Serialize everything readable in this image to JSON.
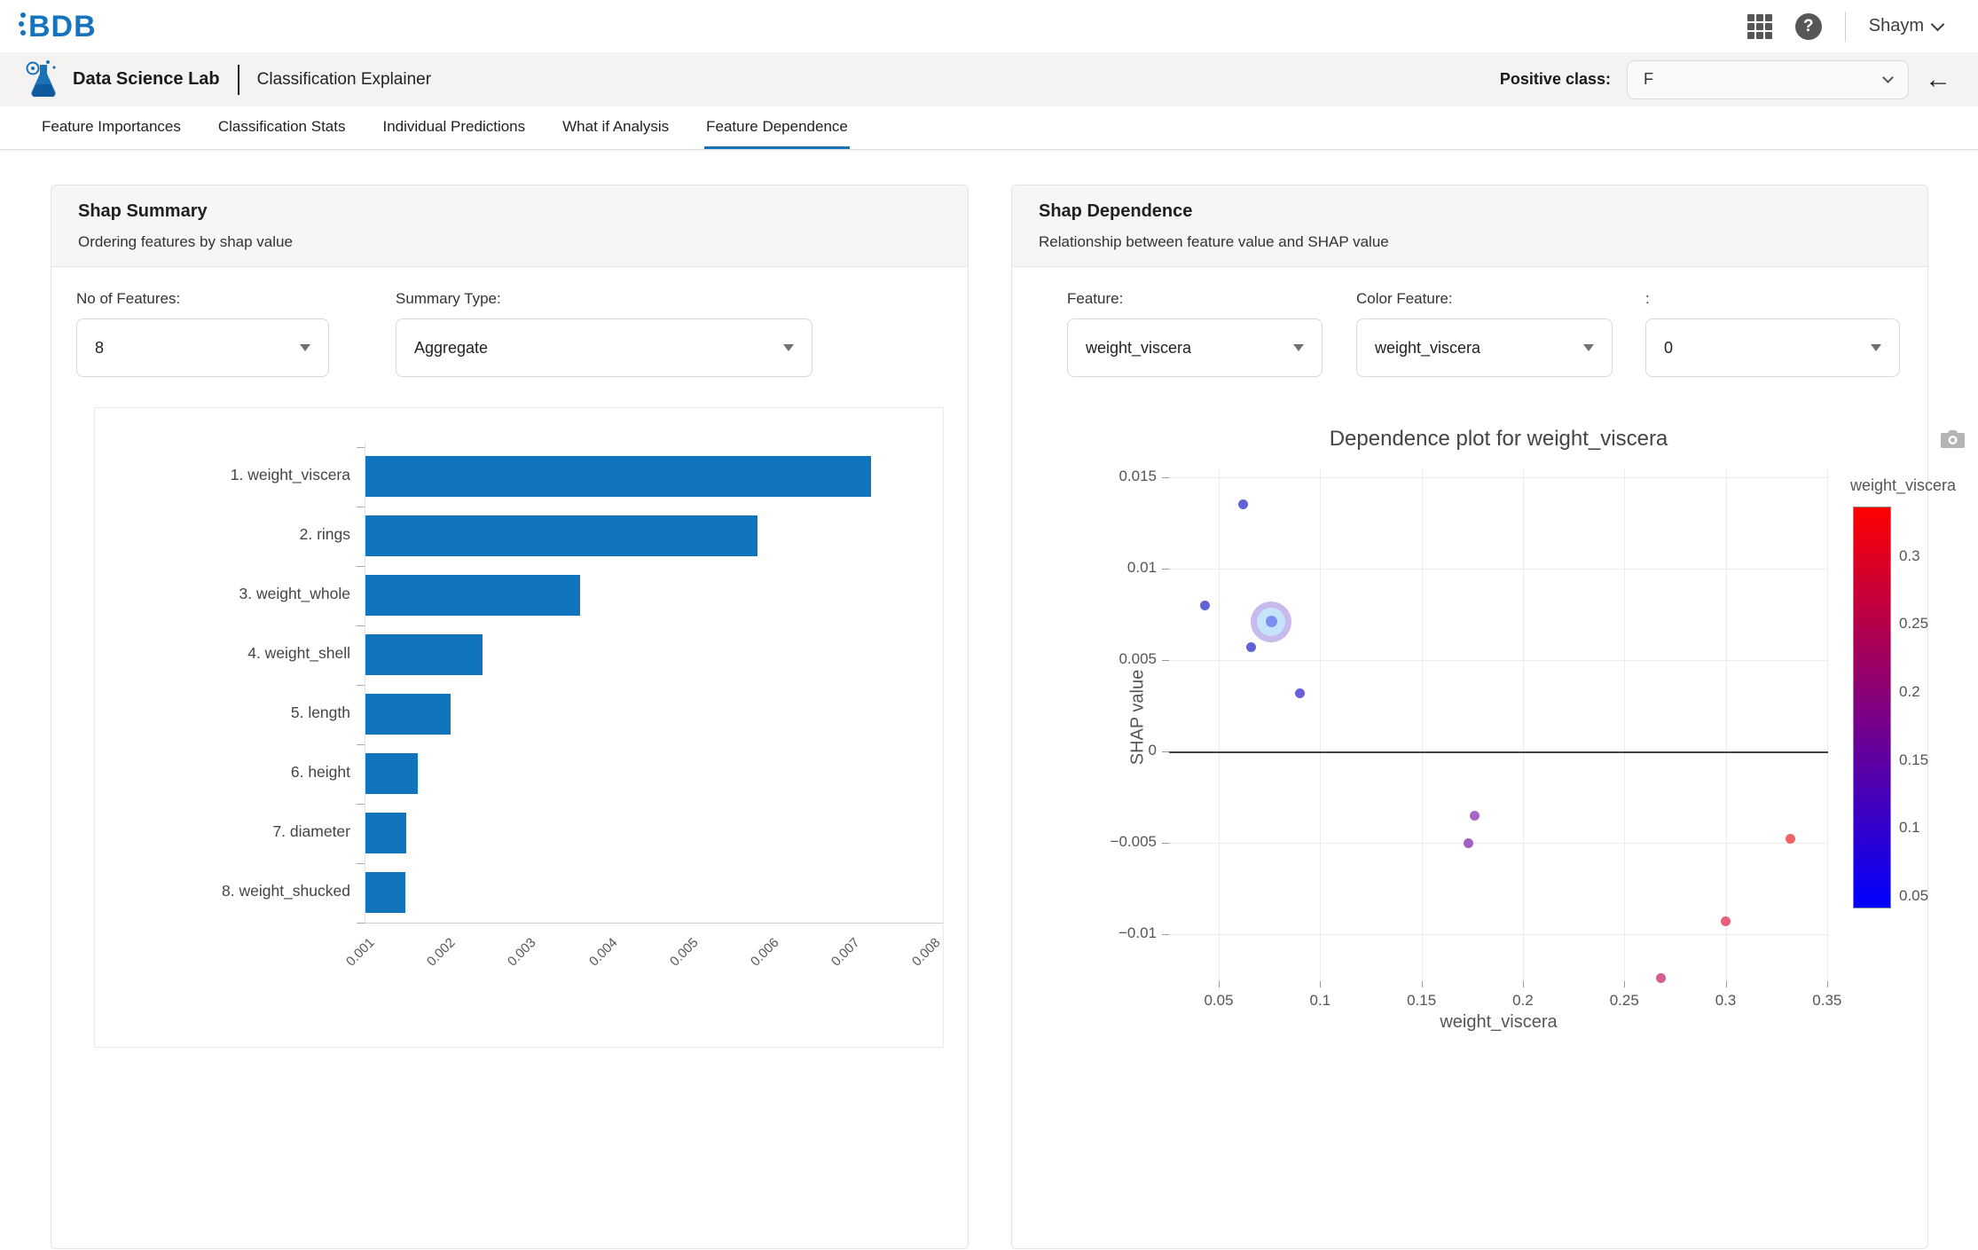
{
  "topbar": {
    "logo_text": "BDB",
    "user_name": "Shaym",
    "icons": {
      "apps": "grid-3x3",
      "help": "?",
      "user_caret": "chevron-down",
      "back": "left-arrow",
      "camera": "camera",
      "dropdown_caret": "triangle-down"
    }
  },
  "app_header": {
    "app_title": "Data Science Lab",
    "page_title": "Classification Explainer",
    "positive_class_label": "Positive class:",
    "positive_class_value": "F"
  },
  "tabs": [
    {
      "label": "Feature Importances",
      "active": false
    },
    {
      "label": "Classification Stats",
      "active": false
    },
    {
      "label": "Individual Predictions",
      "active": false
    },
    {
      "label": "What if Analysis",
      "active": false
    },
    {
      "label": "Feature Dependence",
      "active": true
    }
  ],
  "shap_summary": {
    "title": "Shap Summary",
    "subtitle": "Ordering features by shap value",
    "controls": {
      "no_of_features_label": "No of Features:",
      "no_of_features_value": "8",
      "summary_type_label": "Summary Type:",
      "summary_type_value": "Aggregate"
    }
  },
  "shap_dependence": {
    "title": "Shap Dependence",
    "subtitle": "Relationship between feature value and SHAP value",
    "controls": {
      "feature_label": "Feature:",
      "feature_value": "weight_viscera",
      "color_feature_label": "Color Feature:",
      "color_feature_value": "weight_viscera",
      "index_label": ":",
      "index_value": "0"
    },
    "plot_title": "Dependence plot for weight_viscera",
    "xlabel": "weight_viscera",
    "ylabel": "SHAP value"
  },
  "chart_data": [
    {
      "type": "bar",
      "orientation": "horizontal",
      "title": "",
      "categories": [
        "1. weight_viscera",
        "2. rings",
        "3. weight_whole",
        "4. weight_shell",
        "5. length",
        "6. height",
        "7. diameter",
        "8. weight_shucked"
      ],
      "values": [
        0.0072,
        0.0058,
        0.0036,
        0.0024,
        0.002,
        0.0016,
        0.00145,
        0.00144
      ],
      "xtick_labels": [
        "0.001",
        "0.002",
        "0.003",
        "0.004",
        "0.005",
        "0.006",
        "0.007",
        "0.008"
      ],
      "xticks": [
        0.001,
        0.002,
        0.003,
        0.004,
        0.005,
        0.006,
        0.007,
        0.008
      ],
      "xlim": [
        0.00095,
        0.0081
      ],
      "bar_color": "#1175bd",
      "grid": false
    },
    {
      "type": "scatter",
      "title": "Dependence plot for weight_viscera",
      "xlabel": "weight_viscera",
      "ylabel": "SHAP value",
      "xlim": [
        0.0255,
        0.3505
      ],
      "ylim": [
        -0.01257,
        0.01544
      ],
      "xticks": [
        0.05,
        0.1,
        0.15,
        0.2,
        0.25,
        0.3,
        0.35
      ],
      "xtick_labels": [
        "0.05",
        "0.1",
        "0.15",
        "0.2",
        "0.25",
        "0.3",
        "0.35"
      ],
      "yticks": [
        0.015,
        0.01,
        0.005,
        0,
        -0.005,
        -0.01
      ],
      "ytick_labels": [
        "0.015",
        "0.01",
        "0.005",
        "0",
        "−0.005",
        "−0.01"
      ],
      "zero_line": true,
      "grid": true,
      "legend_position": "colorbar-right",
      "points": [
        {
          "x": 0.062,
          "y": 0.0135,
          "color": "#6062d8"
        },
        {
          "x": 0.043,
          "y": 0.008,
          "color": "#6062d8"
        },
        {
          "x": 0.076,
          "y": 0.0071,
          "color": "#7b8cf0",
          "highlighted": true
        },
        {
          "x": 0.066,
          "y": 0.0057,
          "color": "#6062d8"
        },
        {
          "x": 0.09,
          "y": 0.0032,
          "color": "#6a5fd4"
        },
        {
          "x": 0.176,
          "y": -0.0035,
          "color": "#a964c9"
        },
        {
          "x": 0.173,
          "y": -0.005,
          "color": "#a05fc4"
        },
        {
          "x": 0.268,
          "y": -0.0124,
          "color": "#d55e93"
        },
        {
          "x": 0.3,
          "y": -0.0093,
          "color": "#e85f77"
        },
        {
          "x": 0.332,
          "y": -0.0048,
          "color": "#f4605f"
        }
      ],
      "highlight_style": {
        "ring_color": "#c8baed",
        "inner_color": "#c5e3fb",
        "dot_color": "#7d8ef1"
      },
      "colorbar": {
        "title": "weight_viscera",
        "tick_labels": [
          "0.3",
          "0.25",
          "0.2",
          "0.15",
          "0.1",
          "0.05"
        ],
        "ticks": [
          0.3,
          0.25,
          0.2,
          0.15,
          0.1,
          0.05
        ],
        "range": [
          0.0415,
          0.337
        ],
        "top_color": "#ff0000",
        "bottom_color": "#0000ff"
      }
    }
  ],
  "colors": {
    "accent_blue": "#1673b8",
    "bar_blue": "#1175bd",
    "header_bg": "#f4f3f1",
    "card_head_bg": "#f7f6f4",
    "grid_line": "#ececec",
    "zero_line": "#444444"
  }
}
